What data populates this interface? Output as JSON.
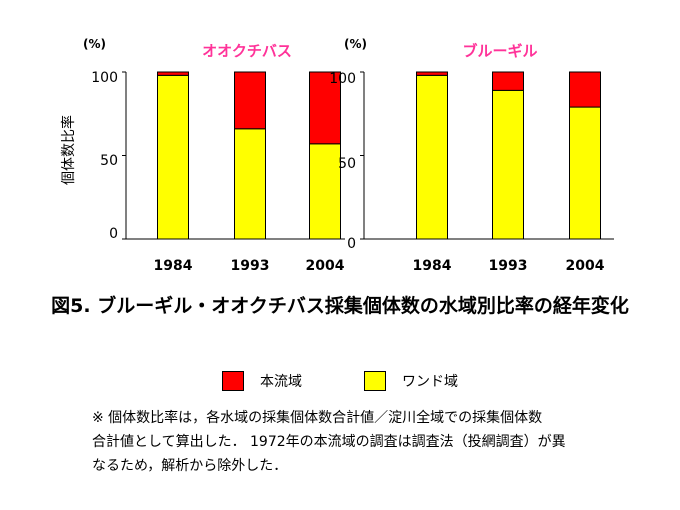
{
  "chart_data": [
    {
      "type": "bar",
      "stacked": true,
      "title": "オオクチバス",
      "title_color": "#ff3399",
      "unit": "(%)",
      "ylabel": "個体数比率",
      "ylim": [
        0,
        100
      ],
      "yticks": [
        "0",
        "50",
        "100"
      ],
      "categories": [
        "1984",
        "1993",
        "2004"
      ],
      "series": [
        {
          "name": "ワンド域",
          "color": "#ffff00",
          "values": [
            98,
            66,
            57
          ]
        },
        {
          "name": "本流域",
          "color": "#ff0000",
          "values": [
            2,
            34,
            43
          ]
        }
      ]
    },
    {
      "type": "bar",
      "stacked": true,
      "title": "ブルーギル",
      "title_color": "#ff3399",
      "unit": "(%)",
      "ylim": [
        0,
        100
      ],
      "yticks": [
        "0",
        "50",
        "100"
      ],
      "categories": [
        "1984",
        "1993",
        "2004"
      ],
      "series": [
        {
          "name": "ワンド域",
          "color": "#ffff00",
          "values": [
            98,
            89,
            79
          ]
        },
        {
          "name": "本流域",
          "color": "#ff0000",
          "values": [
            2,
            11,
            21
          ]
        }
      ]
    }
  ],
  "caption": "図5. ブルーギル・オオクチバス採集個体数の水域別比率の経年変化",
  "legend": [
    {
      "label": "本流域",
      "color": "#ff0000"
    },
    {
      "label": "ワンド域",
      "color": "#ffff00"
    }
  ],
  "note_lines": [
    "※ 個体数比率は，各水域の採集個体数合計値／淀川全域での採集個体数",
    "合計値として算出した． 1972年の本流域の調査は調査法（投網調査）が異",
    "なるため，解析から除外した．"
  ]
}
